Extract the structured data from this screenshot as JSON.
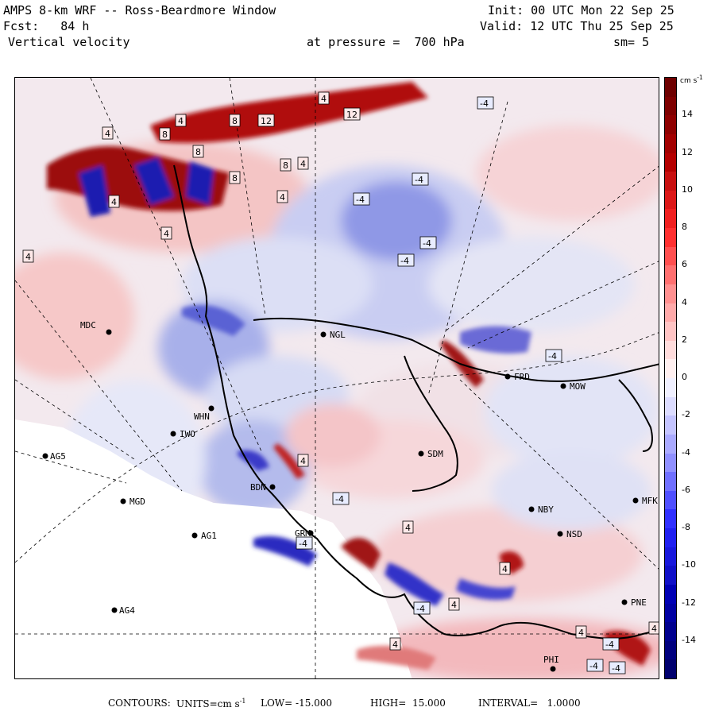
{
  "header": {
    "title": "AMPS 8-km WRF -- Ross-Beardmore Window",
    "init": "Init: 00 UTC Mon 22 Sep 25",
    "fcst": "Fcst:   84 h",
    "valid": "Valid: 12 UTC Thu 25 Sep 25",
    "field": "Vertical velocity",
    "pressure": "at pressure =  700 hPa",
    "smoothing": "sm= 5"
  },
  "colorbar": {
    "units": "cm s",
    "units_exp": "-1",
    "ticks": [
      "14",
      "12",
      "10",
      "8",
      "6",
      "4",
      "2",
      "0",
      "-2",
      "-4",
      "-6",
      "-8",
      "-10",
      "-12",
      "-14"
    ],
    "min": -16,
    "max": 16,
    "positive_color": "#8b0000",
    "negative_color": "#00008b"
  },
  "stations": [
    {
      "name": "MDC"
    },
    {
      "name": "NGL"
    },
    {
      "name": "FRD"
    },
    {
      "name": "MOW"
    },
    {
      "name": "WHN"
    },
    {
      "name": "IWO"
    },
    {
      "name": "AG5"
    },
    {
      "name": "SDM"
    },
    {
      "name": "BDN"
    },
    {
      "name": "MGD"
    },
    {
      "name": "NBY"
    },
    {
      "name": "MFK"
    },
    {
      "name": "AG1"
    },
    {
      "name": "GRM"
    },
    {
      "name": "NSD"
    },
    {
      "name": "AG4"
    },
    {
      "name": "PNE"
    },
    {
      "name": "PHI"
    }
  ],
  "contour_labels": [
    "4",
    "4",
    "12",
    "8",
    "12",
    "4",
    "8",
    "8",
    "4",
    "8",
    "4",
    "8",
    "4",
    "-4",
    "-4",
    "-4",
    "-4",
    "-4",
    "-4",
    "4",
    "4",
    "4",
    "-4",
    "4",
    "4",
    "-4",
    "-4",
    "-4",
    "4",
    "-4",
    "4",
    "-4",
    "4",
    "4"
  ],
  "footer": {
    "contours": "CONTOURS:",
    "units_label": "UNITS=cm s",
    "units_exp": "-1",
    "low": "LOW= -15.000",
    "high": "HIGH=  15.000",
    "interval": "INTERVAL=   1.0000"
  }
}
